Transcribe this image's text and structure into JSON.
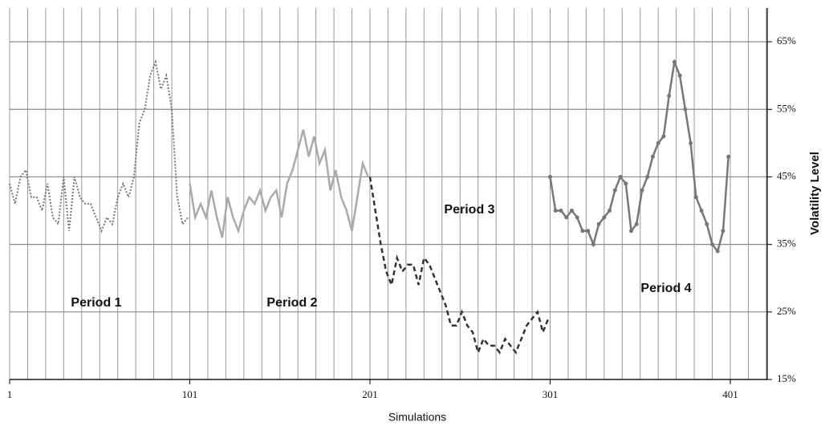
{
  "chart_data": {
    "type": "line",
    "x_label": "Simulations",
    "y_label": "Volatility Level",
    "xlim": [
      1,
      421.5
    ],
    "ylim": [
      15,
      70
    ],
    "xticks": [
      1,
      101,
      201,
      301,
      401
    ],
    "yticks": [
      {
        "value": 15,
        "label": "15%"
      },
      {
        "value": 25,
        "label": "25%"
      },
      {
        "value": 35,
        "label": "35%"
      },
      {
        "value": 45,
        "label": "45%"
      },
      {
        "value": 55,
        "label": "55%"
      },
      {
        "value": 65,
        "label": "65%"
      }
    ],
    "grid": true,
    "annotations": [
      "Period 1",
      "Period 2",
      "Period 3",
      "Period 4"
    ],
    "series": [
      {
        "color": "#777777",
        "style": "dotted",
        "markers": false,
        "x": [
          1,
          4,
          7,
          10,
          13,
          16,
          19,
          22,
          25,
          28,
          31,
          34,
          37,
          40,
          43,
          46,
          49,
          52,
          55,
          58,
          61,
          64,
          67,
          70,
          73,
          76,
          79,
          82,
          85,
          88,
          91,
          94,
          97,
          100
        ],
        "values": [
          44,
          41,
          45,
          46,
          42,
          42,
          40,
          44,
          39,
          38,
          45,
          37,
          45,
          42,
          41,
          41,
          39,
          37,
          39,
          38,
          42,
          44,
          42,
          45,
          53,
          55,
          60,
          62,
          58,
          60,
          55,
          42,
          38,
          39
        ]
      },
      {
        "color": "#aaaaaa",
        "style": "solid",
        "markers": false,
        "x": [
          101,
          104,
          107,
          110,
          113,
          116,
          119,
          122,
          125,
          128,
          131,
          134,
          137,
          140,
          143,
          146,
          149,
          152,
          155,
          158,
          161,
          164,
          167,
          170,
          173,
          176,
          179,
          182,
          185,
          188,
          191,
          194,
          197,
          200
        ],
        "values": [
          44,
          39,
          41,
          39,
          43,
          39,
          36,
          42,
          39,
          37,
          40,
          42,
          41,
          43,
          40,
          42,
          43,
          39,
          44,
          46,
          49,
          52,
          48,
          51,
          47,
          49,
          43,
          46,
          42,
          40,
          37,
          42,
          47,
          45
        ]
      },
      {
        "color": "#333333",
        "style": "dashed",
        "markers": false,
        "x": [
          201,
          204,
          207,
          210,
          213,
          216,
          219,
          222,
          225,
          228,
          231,
          234,
          237,
          240,
          243,
          246,
          249,
          252,
          255,
          258,
          261,
          264,
          267,
          270,
          273,
          276,
          279,
          282,
          285,
          288,
          291,
          294,
          297,
          300
        ],
        "values": [
          45,
          40,
          35,
          31,
          29,
          33,
          31,
          32,
          32,
          29,
          33,
          32,
          30,
          28,
          26,
          23,
          23,
          25,
          23,
          22,
          19,
          21,
          20,
          20,
          19,
          21,
          20,
          19,
          21,
          23,
          24,
          25,
          22,
          24
        ]
      },
      {
        "color": "#777777",
        "style": "solid",
        "markers": true,
        "x": [
          301,
          304,
          307,
          310,
          313,
          316,
          319,
          322,
          325,
          328,
          331,
          334,
          337,
          340,
          343,
          346,
          349,
          352,
          355,
          358,
          361,
          364,
          367,
          370,
          373,
          376,
          379,
          382,
          385,
          388,
          391,
          394,
          397,
          400
        ],
        "values": [
          45,
          40,
          40,
          39,
          40,
          39,
          37,
          37,
          35,
          38,
          39,
          40,
          43,
          45,
          44,
          37,
          38,
          43,
          45,
          48,
          50,
          51,
          57,
          62,
          60,
          55,
          50,
          42,
          40,
          38,
          35,
          34,
          37,
          48
        ]
      }
    ]
  }
}
